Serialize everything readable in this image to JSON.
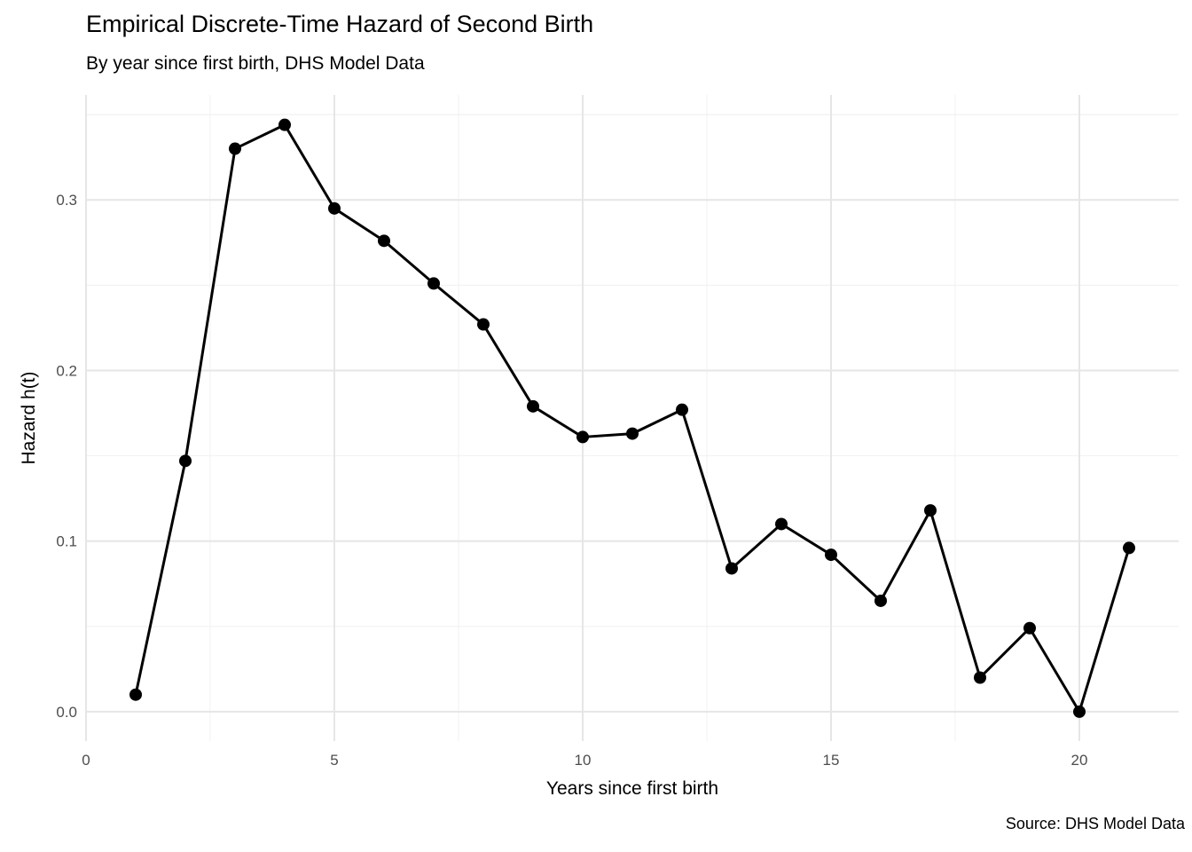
{
  "chart_data": {
    "type": "line",
    "title": "Empirical Discrete-Time Hazard of Second Birth",
    "subtitle": "By year since first birth, DHS Model Data",
    "xlabel": "Years since first birth",
    "ylabel": "Hazard h(t)",
    "caption": "Source: DHS Model Data",
    "x": [
      1,
      2,
      3,
      4,
      5,
      6,
      7,
      8,
      9,
      10,
      11,
      12,
      13,
      14,
      15,
      16,
      17,
      18,
      19,
      20,
      21
    ],
    "values": [
      0.01,
      0.147,
      0.33,
      0.344,
      0.295,
      0.276,
      0.251,
      0.227,
      0.179,
      0.161,
      0.163,
      0.177,
      0.084,
      0.11,
      0.092,
      0.065,
      0.118,
      0.02,
      0.049,
      0.0,
      0.096
    ],
    "x_ticks": [
      0,
      5,
      10,
      15,
      20
    ],
    "x_tick_labels": [
      "0",
      "5",
      "10",
      "15",
      "20"
    ],
    "x_minor_ticks": [
      2.5,
      7.5,
      12.5,
      17.5
    ],
    "y_ticks": [
      0.0,
      0.1,
      0.2,
      0.3
    ],
    "y_tick_labels": [
      "0.0",
      "0.1",
      "0.2",
      "0.3"
    ],
    "y_minor_ticks": [
      0.05,
      0.15,
      0.25,
      0.35
    ],
    "xlim": [
      0,
      22
    ],
    "ylim": [
      -0.0172,
      0.3615
    ],
    "grid": "on",
    "legend": "none",
    "marker_radius": 7,
    "line_width": 3,
    "colors": {
      "background": "#ffffff",
      "series": "#000000",
      "grid_major": "#e6e6e6",
      "grid_minor": "#f2f2f2",
      "tick_label": "#4d4d4d",
      "text": "#000000"
    }
  }
}
